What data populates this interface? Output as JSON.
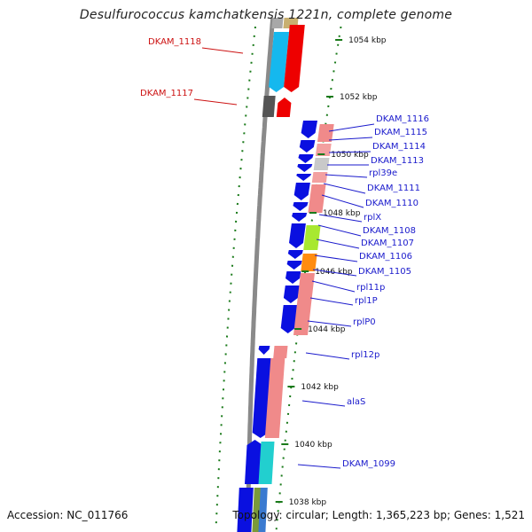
{
  "title": "Desulfurococcus kamchatkensis 1221n, complete genome",
  "accession": "Accession: NC_011766",
  "topology": "Topology: circular; Length: 1,365,223 bp; Genes: 1,521",
  "colors": {
    "gene_blue": "#0a10e0",
    "label_blue": "#1a1acc",
    "label_red": "#cc1111",
    "tick_green": "#1a7a1a",
    "backbone_gray": "#8a8a8a"
  },
  "scale_labels": [
    {
      "text": "1054 kbp"
    },
    {
      "text": "1052 kbp"
    },
    {
      "text": "1050 kbp"
    },
    {
      "text": "1048 kbp"
    },
    {
      "text": "1046 kbp"
    },
    {
      "text": "1044 kbp"
    },
    {
      "text": "1042 kbp"
    },
    {
      "text": "1040 kbp"
    },
    {
      "text": "1038 kbp"
    }
  ],
  "gene_labels": [
    {
      "text": "DKAM_1118",
      "color": "red"
    },
    {
      "text": "DKAM_1117",
      "color": "red"
    },
    {
      "text": "DKAM_1116",
      "color": "blue"
    },
    {
      "text": "DKAM_1115",
      "color": "blue"
    },
    {
      "text": "DKAM_1114",
      "color": "blue"
    },
    {
      "text": "DKAM_1113",
      "color": "blue"
    },
    {
      "text": "rpl39e",
      "color": "blue"
    },
    {
      "text": "DKAM_1111",
      "color": "blue"
    },
    {
      "text": "DKAM_1110",
      "color": "blue"
    },
    {
      "text": "rplX",
      "color": "blue"
    },
    {
      "text": "DKAM_1108",
      "color": "blue"
    },
    {
      "text": "DKAM_1107",
      "color": "blue"
    },
    {
      "text": "DKAM_1106",
      "color": "blue"
    },
    {
      "text": "DKAM_1105",
      "color": "blue"
    },
    {
      "text": "rpl11p",
      "color": "blue"
    },
    {
      "text": "rpl1P",
      "color": "blue"
    },
    {
      "text": "rplP0",
      "color": "blue"
    },
    {
      "text": "rpl12p",
      "color": "blue"
    },
    {
      "text": "alaS",
      "color": "blue"
    },
    {
      "text": "DKAM_1099",
      "color": "blue"
    }
  ]
}
